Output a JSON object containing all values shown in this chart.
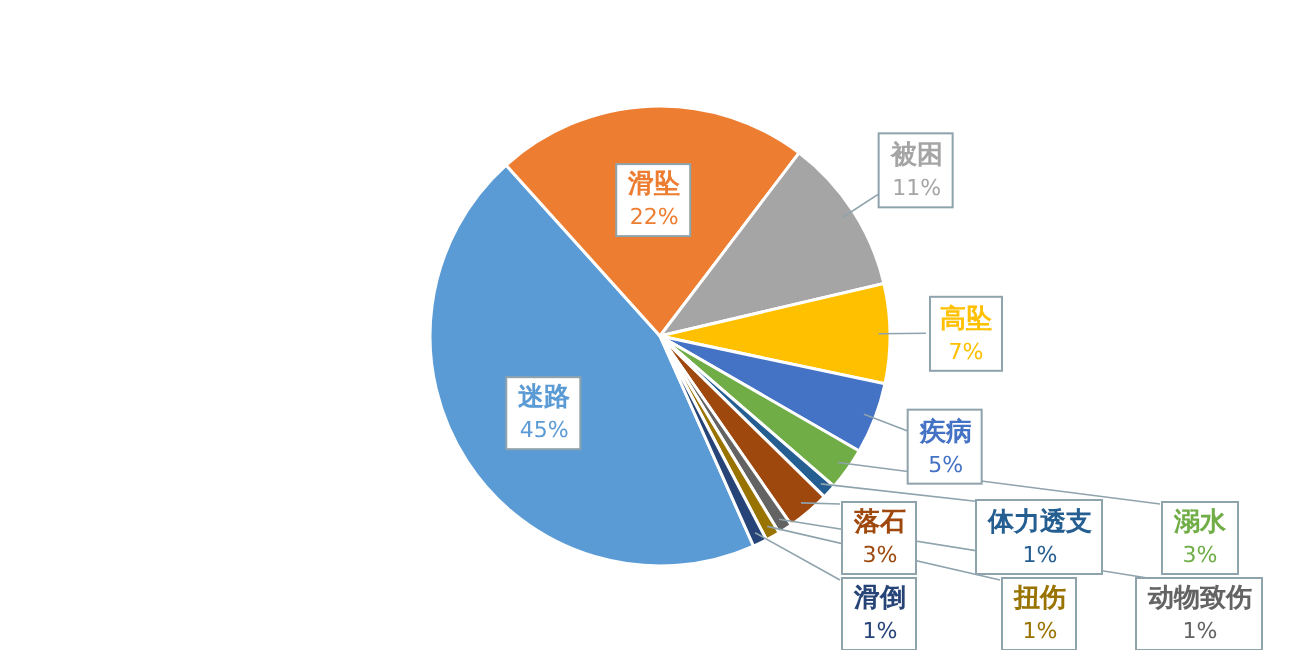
{
  "chart_data": {
    "type": "pie",
    "categories": [
      "迷路",
      "滑坠",
      "被困",
      "高坠",
      "疾病",
      "溺水",
      "体力透支",
      "落石",
      "动物致伤",
      "扭伤",
      "滑倒"
    ],
    "values": [
      45,
      22,
      11,
      7,
      5,
      3,
      1,
      3,
      1,
      1,
      1
    ],
    "colors": [
      "#5b9bd5",
      "#ed7d31",
      "#a5a5a5",
      "#ffc000",
      "#4472c4",
      "#70ad47",
      "#255e91",
      "#9e480e",
      "#636363",
      "#997300",
      "#264478"
    ],
    "value_labels": [
      "45%",
      "22%",
      "11%",
      "7%",
      "5%",
      "3%",
      "1%",
      "3%",
      "1%",
      "1%",
      "1%"
    ]
  }
}
